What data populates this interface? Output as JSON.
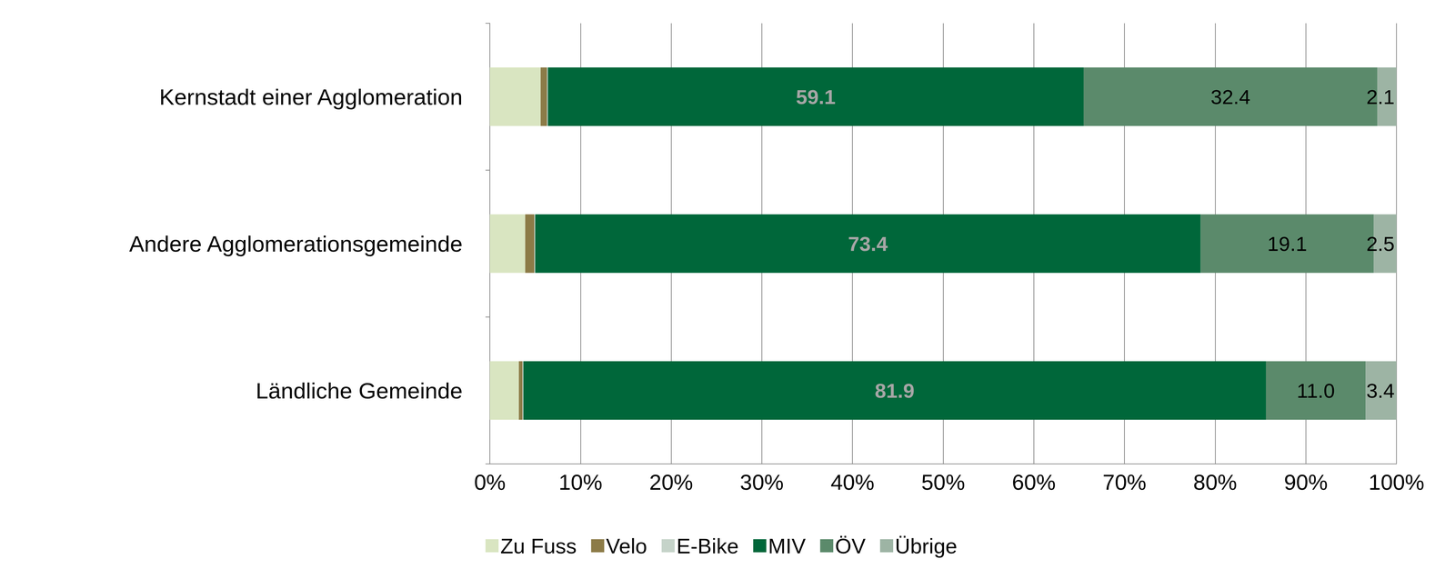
{
  "chart_data": {
    "type": "bar",
    "orientation": "horizontal",
    "stacked": true,
    "grid": true,
    "legend": "bottom",
    "categories": [
      "Kernstadt einer Agglomeration",
      "Andere Agglomerationsgemeinde",
      "Ländliche Gemeinde"
    ],
    "xlim": [
      0,
      100
    ],
    "xticks": [
      {
        "value": 0,
        "label": "0%"
      },
      {
        "value": 10,
        "label": "10%"
      },
      {
        "value": 20,
        "label": "20%"
      },
      {
        "value": 30,
        "label": "30%"
      },
      {
        "value": 40,
        "label": "40%"
      },
      {
        "value": 50,
        "label": "50%"
      },
      {
        "value": 60,
        "label": "60%"
      },
      {
        "value": 70,
        "label": "70%"
      },
      {
        "value": 80,
        "label": "80%"
      },
      {
        "value": 90,
        "label": "90%"
      },
      {
        "value": 100,
        "label": "100%"
      }
    ],
    "series": [
      {
        "name": "Zu Fuss",
        "color": "#d9e5c1",
        "values": [
          5.6,
          3.9,
          3.2
        ]
      },
      {
        "name": "Velo",
        "color": "#8c7b47",
        "values": [
          0.7,
          1.0,
          0.4
        ]
      },
      {
        "name": "E-Bike",
        "color": "#c5d3c9",
        "values": [
          0.1,
          0.1,
          0.1
        ]
      },
      {
        "name": "MIV",
        "color": "#00673a",
        "values": [
          59.1,
          73.4,
          81.9
        ],
        "data_labels": true
      },
      {
        "name": "ÖV",
        "color": "#5b8a6b",
        "values": [
          32.4,
          19.1,
          11.0
        ],
        "value_labels": [
          "32.4",
          "19.1",
          "11.0"
        ],
        "data_labels": true
      },
      {
        "name": "Übrige",
        "color": "#9db4a4",
        "values": [
          2.1,
          2.5,
          3.4
        ],
        "data_labels": true
      }
    ]
  }
}
